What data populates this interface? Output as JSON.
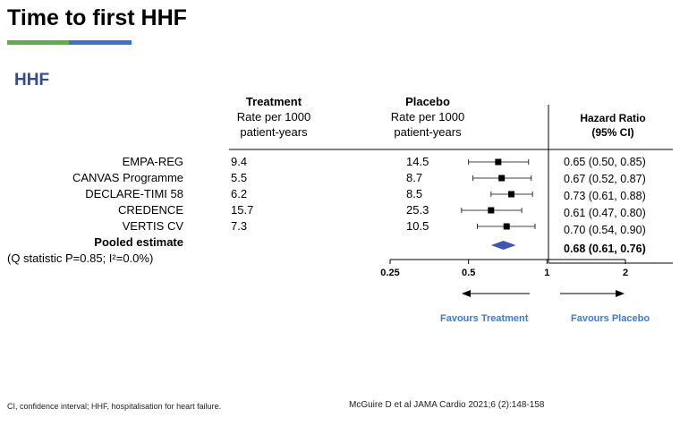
{
  "slide": {
    "title": "Time to first HHF",
    "section": "HHF",
    "footnote": "CI, confidence interval; HHF, hospitalisation for heart failure.",
    "citation": "McGuire D et al JAMA Cardio 2021;6 (2):148-158"
  },
  "columns": {
    "treatment": {
      "title": "Treatment",
      "line1": "Rate per 1000",
      "line2": "patient-years"
    },
    "placebo": {
      "title": "Placebo",
      "line1": "Rate per 1000",
      "line2": "patient-years"
    },
    "hr": {
      "line1": "Hazard Ratio",
      "line2": "(95% CI)"
    }
  },
  "favours": {
    "left": "Favours Treatment",
    "right": "Favours Placebo"
  },
  "pooled_note": "(Q statistic P=0.85; I²=0.0%)",
  "chart_data": {
    "type": "forest",
    "x_scale": "log",
    "xlim": [
      0.25,
      2
    ],
    "ticks": [
      0.25,
      0.5,
      1,
      2
    ],
    "tick_labels": [
      "0.25",
      "0.5",
      "1",
      "2"
    ],
    "reference_line": 1,
    "colors": {
      "pooled": "#3f57b3",
      "marker": "#000000"
    },
    "studies": [
      {
        "name": "EMPA-REG",
        "treatment_rate": "9.4",
        "placebo_rate": "14.5",
        "hr": 0.65,
        "lo": 0.5,
        "hi": 0.85,
        "label": "0.65 (0.50, 0.85)"
      },
      {
        "name": "CANVAS Programme",
        "treatment_rate": "5.5",
        "placebo_rate": "8.7",
        "hr": 0.67,
        "lo": 0.52,
        "hi": 0.87,
        "label": "0.67 (0.52, 0.87)"
      },
      {
        "name": "DECLARE-TIMI 58",
        "treatment_rate": "6.2",
        "placebo_rate": "8.5",
        "hr": 0.73,
        "lo": 0.61,
        "hi": 0.88,
        "label": "0.73 (0.61, 0.88)"
      },
      {
        "name": "CREDENCE",
        "treatment_rate": "15.7",
        "placebo_rate": "25.3",
        "hr": 0.61,
        "lo": 0.47,
        "hi": 0.8,
        "label": "0.61 (0.47, 0.80)"
      },
      {
        "name": "VERTIS CV",
        "treatment_rate": "7.3",
        "placebo_rate": "10.5",
        "hr": 0.7,
        "lo": 0.54,
        "hi": 0.9,
        "label": "0.70 (0.54, 0.90)"
      }
    ],
    "pooled": {
      "name": "Pooled estimate",
      "hr": 0.68,
      "lo": 0.61,
      "hi": 0.76,
      "label": "0.68 (0.61, 0.76)"
    }
  }
}
